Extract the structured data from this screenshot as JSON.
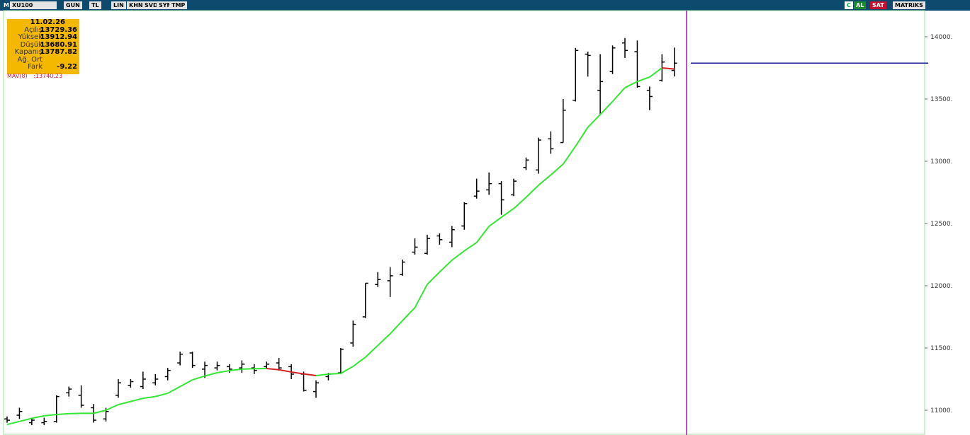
{
  "toolbar": {
    "logo": "M",
    "symbol": "XU100",
    "buttons": [
      "GUN",
      "TL",
      "LIN",
      "KHN",
      "SVD",
      "SYM",
      "TMP"
    ],
    "right": [
      "C",
      "AL",
      "SAT",
      "MATRiKS"
    ]
  },
  "info": {
    "date": "11.02.26",
    "labels": [
      "Açılış",
      "Yüksek",
      "Düşük",
      "Kapanış",
      "Ağ. Ort",
      "Fark"
    ],
    "change": -9.22
  },
  "chart_data": {
    "type": "ohlc",
    "color": "#000000",
    "open": [
      10930,
      10960,
      10900,
      10900,
      10910,
      11140,
      11120,
      11020,
      10930,
      11120,
      11200,
      11190,
      11220,
      11270,
      11380,
      11460,
      11330,
      11340,
      11350,
      11340,
      11340,
      11350,
      11380,
      11350,
      11290,
      11150,
      11270,
      11300,
      11540,
      11750,
      12010,
      12040,
      12090,
      12270,
      12260,
      12400,
      12350,
      12480,
      12720,
      12770,
      12820,
      12730,
      12950,
      12930,
      13180,
      13150,
      13490,
      13860,
      13570,
      13720,
      13950,
      13880,
      13570,
      13650,
      13729.36
    ],
    "high": [
      10950,
      11020,
      10940,
      10940,
      11120,
      11190,
      11200,
      11050,
      11020,
      11250,
      11250,
      11310,
      11290,
      11340,
      11470,
      11470,
      11390,
      11390,
      11370,
      11400,
      11370,
      11390,
      11420,
      11370,
      11310,
      11240,
      11300,
      11500,
      11720,
      12020,
      12110,
      12150,
      12210,
      12380,
      12410,
      12420,
      12480,
      12670,
      12860,
      12910,
      12840,
      12860,
      13030,
      13190,
      13240,
      13500,
      13910,
      13880,
      13860,
      13930,
      13990,
      13970,
      13600,
      13860,
      13912.94
    ],
    "low": [
      10900,
      10930,
      10880,
      10880,
      10900,
      11110,
      11020,
      10900,
      10910,
      11100,
      11180,
      11170,
      11200,
      11240,
      11360,
      11340,
      11260,
      11320,
      11300,
      11300,
      11290,
      11330,
      11320,
      11250,
      11150,
      11100,
      11240,
      11290,
      11510,
      11740,
      11990,
      11910,
      12080,
      12250,
      12250,
      12330,
      12310,
      12450,
      12700,
      12730,
      12570,
      12720,
      12930,
      12900,
      13060,
      13150,
      13480,
      13680,
      13380,
      13700,
      13830,
      13590,
      13410,
      13640,
      13680.91
    ],
    "close": [
      10920,
      10990,
      10920,
      10910,
      11110,
      11170,
      11040,
      10920,
      10990,
      11220,
      11230,
      11250,
      11250,
      11320,
      11450,
      11360,
      11360,
      11360,
      11330,
      11370,
      11320,
      11370,
      11340,
      11290,
      11160,
      11220,
      11290,
      11490,
      11690,
      12020,
      12050,
      12080,
      12190,
      12310,
      12380,
      12370,
      12450,
      12660,
      12760,
      12820,
      12690,
      12840,
      13010,
      13170,
      13100,
      13410,
      13890,
      13850,
      13640,
      13910,
      13890,
      13600,
      13520,
      13797.04,
      13787.82
    ],
    "ma": {
      "name": "MAV(8)",
      "info_label": ":13740.23",
      "up_color": "#33e633",
      "down_color": "#d42020",
      "values": [
        10885,
        10910,
        10935,
        10955,
        10966,
        10972,
        10975,
        10975,
        11000,
        11045,
        11070,
        11096,
        11110,
        11136,
        11190,
        11244,
        11275,
        11301,
        11318,
        11330,
        11334,
        11335,
        11325,
        11307,
        11292,
        11278,
        11290,
        11295,
        11352,
        11426,
        11520,
        11614,
        11720,
        11824,
        12011,
        12110,
        12205,
        12280,
        12347,
        12477,
        12550,
        12620,
        12710,
        12807,
        12890,
        12977,
        13120,
        13273,
        13375,
        13480,
        13591,
        13640,
        13676,
        13750,
        13740.23
      ]
    },
    "last_line_color": "#1a1a9a",
    "ylim": [
      10801,
      14210
    ],
    "yticks": [
      {
        "value": 11000,
        "label": "11000."
      },
      {
        "value": 11500,
        "label": "11500."
      },
      {
        "value": 12000,
        "label": "12000."
      },
      {
        "value": 12500,
        "label": "12500."
      },
      {
        "value": 13000,
        "label": "13000."
      },
      {
        "value": 13500,
        "label": "13500."
      },
      {
        "value": 14000,
        "label": "14000."
      }
    ]
  }
}
